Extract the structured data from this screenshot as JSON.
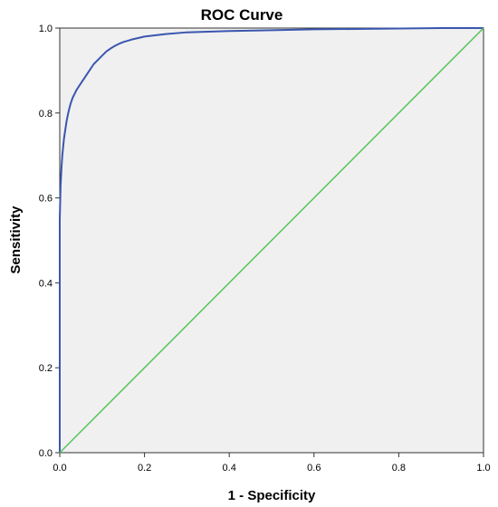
{
  "chart_data": {
    "type": "line",
    "title": "ROC Curve",
    "xlabel": "1 - Specificity",
    "ylabel": "Sensitivity",
    "xlim": [
      0,
      1
    ],
    "ylim": [
      0,
      1
    ],
    "x_ticks": [
      "0.0",
      "0.2",
      "0.4",
      "0.6",
      "0.8",
      "1.0"
    ],
    "y_ticks": [
      "0.0",
      "0.2",
      "0.4",
      "0.6",
      "0.8",
      "1.0"
    ],
    "grid": false,
    "plot_background": "#f0f0f0",
    "series": [
      {
        "color": "#3a56b0",
        "x": [
          0,
          0,
          0.002,
          0.004,
          0.006,
          0.008,
          0.01,
          0.013,
          0.016,
          0.02,
          0.025,
          0.03,
          0.035,
          0.04,
          0.05,
          0.06,
          0.07,
          0.08,
          0.09,
          0.1,
          0.11,
          0.12,
          0.13,
          0.14,
          0.15,
          0.17,
          0.2,
          0.25,
          0.3,
          0.4,
          0.5,
          0.6,
          0.7,
          0.8,
          0.9,
          1.0
        ],
        "y": [
          0,
          0.55,
          0.63,
          0.67,
          0.7,
          0.72,
          0.74,
          0.76,
          0.78,
          0.8,
          0.82,
          0.835,
          0.845,
          0.855,
          0.87,
          0.885,
          0.9,
          0.915,
          0.925,
          0.935,
          0.945,
          0.952,
          0.958,
          0.963,
          0.967,
          0.973,
          0.98,
          0.986,
          0.99,
          0.993,
          0.995,
          0.997,
          0.998,
          0.999,
          1.0,
          1.0
        ]
      },
      {
        "color": "#55c45a",
        "x": [
          0,
          1
        ],
        "y": [
          0,
          1
        ]
      }
    ]
  }
}
